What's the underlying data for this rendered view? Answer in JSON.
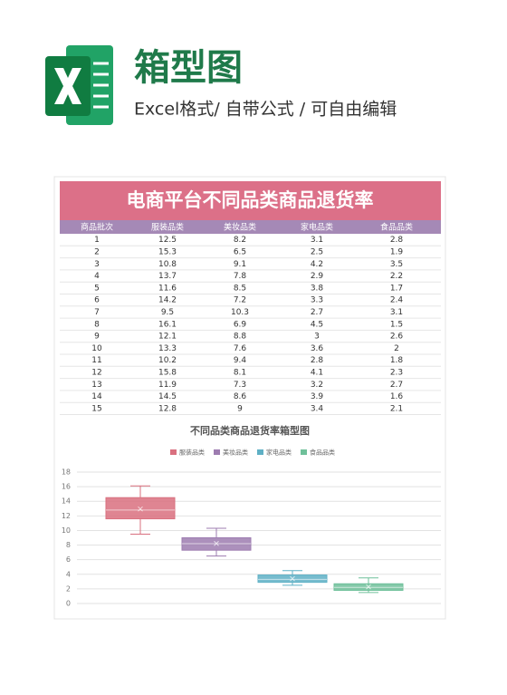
{
  "header": {
    "title": "箱型图",
    "subtitle": "Excel格式/ 自带公式 / 可自由编辑"
  },
  "table": {
    "title": "电商平台不同品类商品退货率",
    "columns": [
      "商品批次",
      "服装品类",
      "美妆品类",
      "家电品类",
      "食品品类"
    ],
    "rows": [
      [
        1,
        12.5,
        8.2,
        3.1,
        2.8
      ],
      [
        2,
        15.3,
        6.5,
        2.5,
        1.9
      ],
      [
        3,
        10.8,
        9.1,
        4.2,
        3.5
      ],
      [
        4,
        13.7,
        7.8,
        2.9,
        2.2
      ],
      [
        5,
        11.6,
        8.5,
        3.8,
        1.7
      ],
      [
        6,
        14.2,
        7.2,
        3.3,
        2.4
      ],
      [
        7,
        9.5,
        10.3,
        2.7,
        3.1
      ],
      [
        8,
        16.1,
        6.9,
        4.5,
        1.5
      ],
      [
        9,
        12.1,
        8.8,
        3,
        2.6
      ],
      [
        10,
        13.3,
        7.6,
        3.6,
        2
      ],
      [
        11,
        10.2,
        9.4,
        2.8,
        1.8
      ],
      [
        12,
        15.8,
        8.1,
        4.1,
        2.3
      ],
      [
        13,
        11.9,
        7.3,
        3.2,
        2.7
      ],
      [
        14,
        14.5,
        8.6,
        3.9,
        1.6
      ],
      [
        15,
        12.8,
        9,
        3.4,
        2.1
      ]
    ]
  },
  "chart_data": {
    "type": "box",
    "title": "不同品类商品退货率箱型图",
    "legend": "top",
    "grid": true,
    "ylim": [
      0,
      18
    ],
    "yticks": [
      0,
      2,
      4,
      6,
      8,
      10,
      12,
      14,
      16,
      18
    ],
    "series": [
      {
        "name": "服装品类",
        "color": "#d9707f",
        "min": 9.5,
        "q1": 11.6,
        "median": 12.8,
        "q3": 14.5,
        "max": 16.1,
        "mean": 12.95
      },
      {
        "name": "美妆品类",
        "color": "#9d7cb0",
        "min": 6.5,
        "q1": 7.3,
        "median": 8.2,
        "q3": 9,
        "max": 10.3,
        "mean": 8.22
      },
      {
        "name": "家电品类",
        "color": "#5fb0c5",
        "min": 2.5,
        "q1": 2.9,
        "median": 3.3,
        "q3": 3.9,
        "max": 4.5,
        "mean": 3.4
      },
      {
        "name": "食品品类",
        "color": "#6fc09a",
        "min": 1.5,
        "q1": 1.8,
        "median": 2.2,
        "q3": 2.7,
        "max": 3.5,
        "mean": 2.28
      }
    ]
  }
}
